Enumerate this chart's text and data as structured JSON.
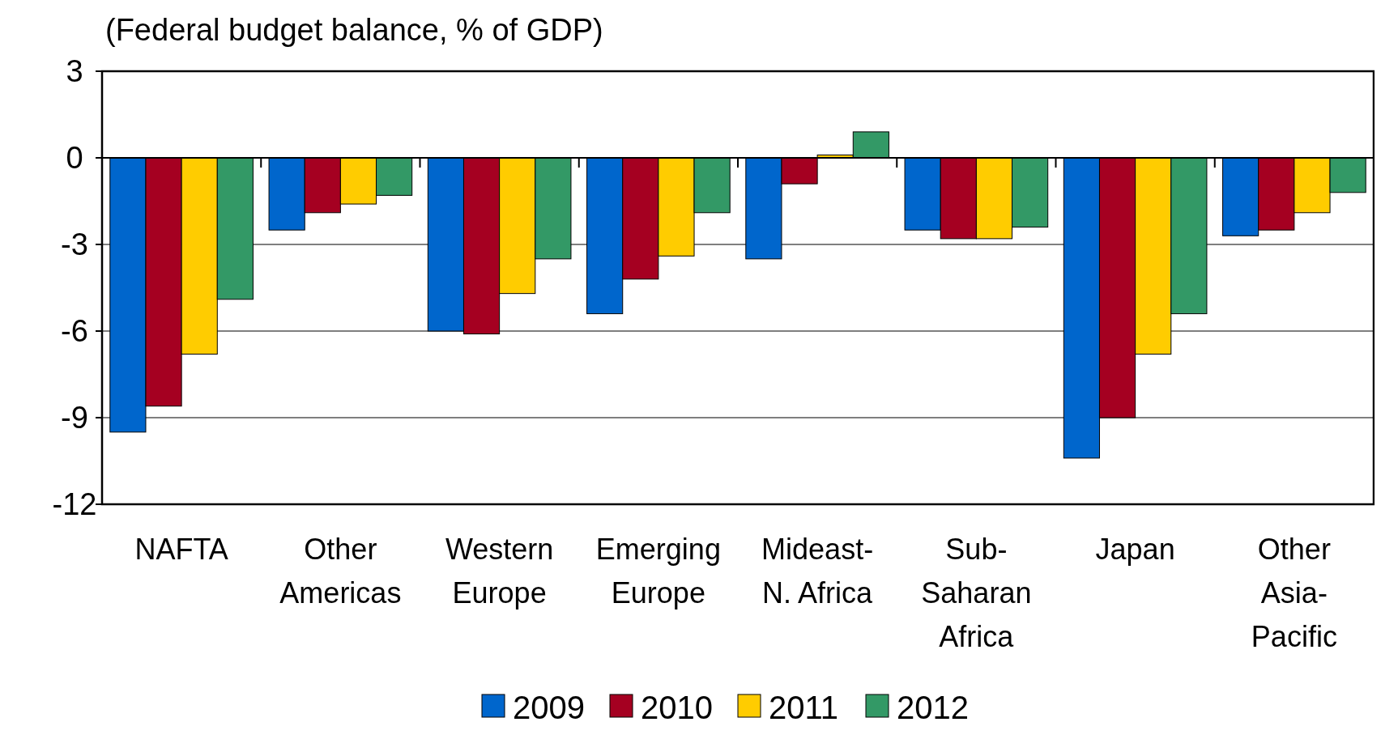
{
  "chart_data": {
    "type": "bar",
    "title": "(Federal budget balance, % of GDP)",
    "categories": [
      "NAFTA",
      "Other\nAmericas",
      "Western\nEurope",
      "Emerging\nEurope",
      "Mideast-\nN. Africa",
      "Sub-\nSaharan\nAfrica",
      "Japan",
      "Other\nAsia-\nPacific"
    ],
    "series": [
      {
        "name": "2009",
        "color": "#0066cc",
        "values": [
          -9.5,
          -2.5,
          -6.0,
          -5.4,
          -3.5,
          -2.5,
          -10.4,
          -2.7
        ]
      },
      {
        "name": "2010",
        "color": "#a50021",
        "values": [
          -8.6,
          -1.9,
          -6.1,
          -4.2,
          -0.9,
          -2.8,
          -9.0,
          -2.5
        ]
      },
      {
        "name": "2011",
        "color": "#ffcc00",
        "values": [
          -6.8,
          -1.6,
          -4.7,
          -3.4,
          0.1,
          -2.8,
          -6.8,
          -1.9
        ]
      },
      {
        "name": "2012",
        "color": "#339966",
        "values": [
          -4.9,
          -1.3,
          -3.5,
          -1.9,
          0.9,
          -2.4,
          -5.4,
          -1.2
        ]
      }
    ],
    "ylim": [
      -12,
      3
    ],
    "yticks": [
      -12,
      -9,
      -6,
      -3,
      0,
      3
    ],
    "grid": "y",
    "legend": "bottom"
  }
}
